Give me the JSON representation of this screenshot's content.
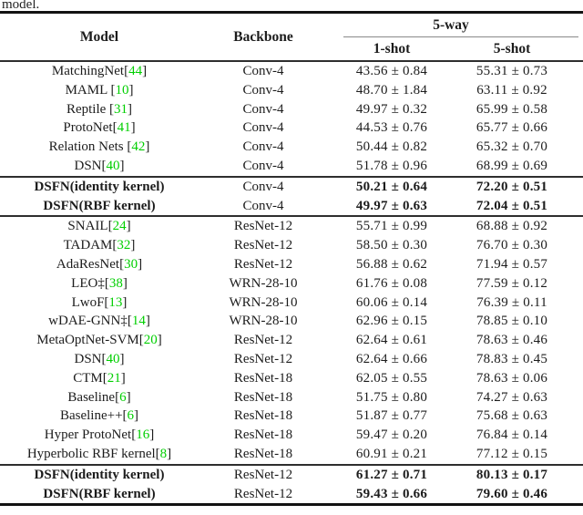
{
  "page": {
    "caption_fragment": "model."
  },
  "table": {
    "group_header": "5-way",
    "col_headers": {
      "model": "Model",
      "backbone": "Backbone",
      "one_shot": "1-shot",
      "five_shot": "5-shot"
    },
    "citation_color": "#00CF00",
    "sections": [
      {
        "rows": [
          {
            "model": "MatchingNet",
            "cite": "44",
            "backbone": "Conv-4",
            "one_shot": "43.56 ± 0.84",
            "five_shot": "55.31 ± 0.73",
            "bold": false
          },
          {
            "model": "MAML ",
            "cite": "10",
            "backbone": "Conv-4",
            "one_shot": "48.70 ± 1.84",
            "five_shot": "63.11 ± 0.92",
            "bold": false
          },
          {
            "model": "Reptile ",
            "cite": "31",
            "backbone": "Conv-4",
            "one_shot": "49.97 ± 0.32",
            "five_shot": "65.99 ± 0.58",
            "bold": false
          },
          {
            "model": "ProtoNet",
            "cite": "41",
            "backbone": "Conv-4",
            "one_shot": "44.53 ± 0.76",
            "five_shot": "65.77 ± 0.66",
            "bold": false
          },
          {
            "model": "Relation Nets ",
            "cite": "42",
            "backbone": "Conv-4",
            "one_shot": "50.44 ± 0.82",
            "five_shot": "65.32 ± 0.70",
            "bold": false
          },
          {
            "model": "DSN",
            "cite": "40",
            "backbone": "Conv-4",
            "one_shot": "51.78 ± 0.96",
            "five_shot": "68.99 ± 0.69",
            "bold": false
          }
        ]
      },
      {
        "rows": [
          {
            "model": "DSFN(identity kernel)",
            "cite": null,
            "backbone": "Conv-4",
            "one_shot": "50.21 ± 0.64",
            "five_shot": "72.20 ± 0.51",
            "bold": true
          },
          {
            "model": "DSFN(RBF kernel)",
            "cite": null,
            "backbone": "Conv-4",
            "one_shot": "49.97 ± 0.63",
            "five_shot": "72.04 ± 0.51",
            "bold": true
          }
        ]
      },
      {
        "rows": [
          {
            "model": "SNAIL",
            "cite": "24",
            "backbone": "ResNet-12",
            "one_shot": "55.71 ± 0.99",
            "five_shot": "68.88 ± 0.92",
            "bold": false
          },
          {
            "model": "TADAM",
            "cite": "32",
            "backbone": "ResNet-12",
            "one_shot": "58.50 ± 0.30",
            "five_shot": "76.70 ± 0.30",
            "bold": false
          },
          {
            "model": "AdaResNet",
            "cite": "30",
            "backbone": "ResNet-12",
            "one_shot": "56.88 ± 0.62",
            "five_shot": "71.94 ± 0.57",
            "bold": false
          },
          {
            "model": "LEO‡",
            "cite": "38",
            "backbone": "WRN-28-10",
            "one_shot": "61.76 ± 0.08",
            "five_shot": "77.59 ± 0.12",
            "bold": false
          },
          {
            "model": "LwoF",
            "cite": "13",
            "backbone": "WRN-28-10",
            "one_shot": "60.06 ± 0.14",
            "five_shot": "76.39 ± 0.11",
            "bold": false
          },
          {
            "model": "wDAE-GNN‡",
            "cite": "14",
            "backbone": "WRN-28-10",
            "one_shot": "62.96 ± 0.15",
            "five_shot": "78.85 ± 0.10",
            "bold": false
          },
          {
            "model": "MetaOptNet-SVM",
            "cite": "20",
            "backbone": "ResNet-12",
            "one_shot": "62.64 ± 0.61",
            "five_shot": "78.63 ± 0.46",
            "bold": false
          },
          {
            "model": "DSN",
            "cite": "40",
            "backbone": "ResNet-12",
            "one_shot": "62.64 ± 0.66",
            "five_shot": "78.83 ± 0.45",
            "bold": false
          },
          {
            "model": "CTM",
            "cite": "21",
            "backbone": "ResNet-18",
            "one_shot": "62.05 ± 0.55",
            "five_shot": "78.63 ± 0.06",
            "bold": false
          },
          {
            "model": "Baseline",
            "cite": "6",
            "backbone": "ResNet-18",
            "one_shot": "51.75 ± 0.80",
            "five_shot": "74.27 ± 0.63",
            "bold": false
          },
          {
            "model": "Baseline++",
            "cite": "6",
            "backbone": "ResNet-18",
            "one_shot": "51.87 ± 0.77",
            "five_shot": "75.68 ± 0.63",
            "bold": false
          },
          {
            "model": "Hyper ProtoNet",
            "cite": "16",
            "backbone": "ResNet-18",
            "one_shot": "59.47 ± 0.20",
            "five_shot": "76.84 ± 0.14",
            "bold": false
          },
          {
            "model": "Hyperbolic RBF kernel",
            "cite": "8",
            "backbone": "ResNet-18",
            "one_shot": "60.91 ± 0.21",
            "five_shot": "77.12 ± 0.15",
            "bold": false
          }
        ]
      },
      {
        "rows": [
          {
            "model": "DSFN(identity kernel)",
            "cite": null,
            "backbone": "ResNet-12",
            "one_shot": "61.27 ± 0.71",
            "five_shot": "80.13 ± 0.17",
            "bold": true
          },
          {
            "model": "DSFN(RBF kernel)",
            "cite": null,
            "backbone": "ResNet-12",
            "one_shot": "59.43 ± 0.66",
            "five_shot": "79.60 ± 0.46",
            "bold": true
          }
        ]
      }
    ]
  }
}
